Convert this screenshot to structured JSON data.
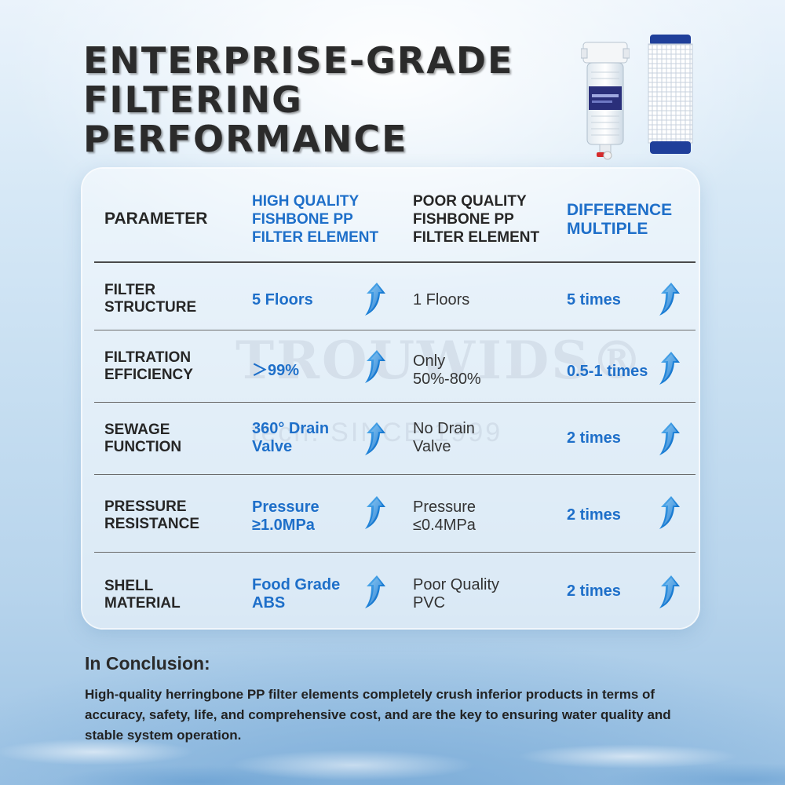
{
  "title": {
    "line1": "ENTERPRISE-GRADE",
    "line2": "FILTERING",
    "line3": "PERFORMANCE"
  },
  "watermark": {
    "brand": "TROUWIDS®",
    "since": "tech. SINCE 1999"
  },
  "table": {
    "headers": {
      "parameter": "PARAMETER",
      "high_quality": [
        "HIGH QUALITY",
        "FISHBONE PP",
        "FILTER ELEMENT"
      ],
      "poor_quality": [
        "POOR QUALITY",
        "FISHBONE PP",
        "FILTER ELEMENT"
      ],
      "difference": [
        "DIFFERENCE",
        "MULTIPLE"
      ]
    },
    "rows": [
      {
        "parameter": [
          "FILTER",
          "STRUCTURE"
        ],
        "high": [
          "5 Floors"
        ],
        "poor": [
          "1 Floors"
        ],
        "diff": "5 times"
      },
      {
        "parameter": [
          "FILTRATION",
          "EFFICIENCY"
        ],
        "high": [
          "＞99%"
        ],
        "poor": [
          "Only",
          "50%-80%"
        ],
        "diff": "0.5-1 times"
      },
      {
        "parameter": [
          "SEWAGE",
          "FUNCTION"
        ],
        "high": [
          "360° Drain",
          "Valve"
        ],
        "poor": [
          "No Drain",
          "Valve"
        ],
        "diff": "2 times"
      },
      {
        "parameter": [
          "PRESSURE",
          "RESISTANCE"
        ],
        "high": [
          "Pressure",
          "≥1.0MPa"
        ],
        "poor": [
          "Pressure",
          "≤0.4MPa"
        ],
        "diff": "2 times"
      },
      {
        "parameter": [
          "SHELL",
          "MATERIAL"
        ],
        "high": [
          "Food Grade",
          "ABS"
        ],
        "poor": [
          "Poor Quality",
          "PVC"
        ],
        "diff": "2 times"
      }
    ]
  },
  "conclusion": {
    "title": "In Conclusion:",
    "body": "High-quality herringbone PP filter elements completely crush inferior products in terms of accuracy, safety, life, and comprehensive cost, and are the key to ensuring water quality and stable system operation."
  },
  "icons": {
    "arrow": "up-arrow-icon",
    "housing": "filter-housing-image",
    "cartridge": "filter-cartridge-image"
  },
  "colors": {
    "accent_blue": "#1e6fc9",
    "text_dark": "#262626"
  }
}
